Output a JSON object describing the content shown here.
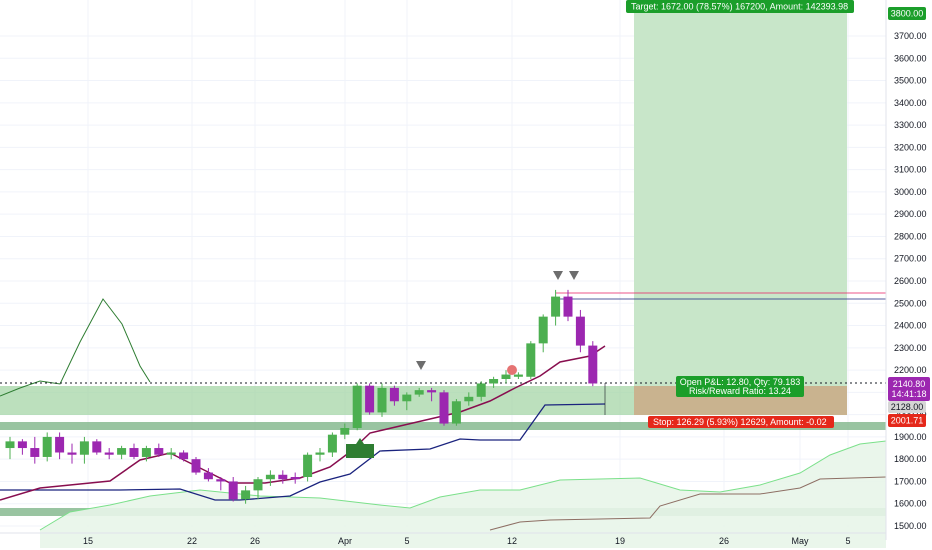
{
  "chart_data": {
    "type": "candlestick",
    "y_axis": {
      "ticks": [
        1500,
        1600,
        1700,
        1800,
        1900,
        2000,
        2100,
        2200,
        2300,
        2400,
        2500,
        2600,
        2700,
        2800,
        2900,
        3000,
        3100,
        3200,
        3300,
        3400,
        3500,
        3600,
        3700
      ],
      "tick_labels": [
        "1500.00",
        "1600.00",
        "1700.00",
        "1800.00",
        "1900.00",
        "2000.00",
        "2100.00",
        "2200.00",
        "2300.00",
        "2400.00",
        "2500.00",
        "2600.00",
        "2700.00",
        "2800.00",
        "2900.00",
        "3000.00",
        "3100.00",
        "3200.00",
        "3300.00",
        "3400.00",
        "3500.00",
        "3600.00",
        "3700.00"
      ],
      "range": [
        1490,
        3830
      ]
    },
    "x_axis": {
      "tick_labels": [
        "15",
        "22",
        "26",
        "Apr",
        "5",
        "12",
        "19",
        "26",
        "May",
        "5"
      ]
    },
    "candles": [
      {
        "o": 1850,
        "h": 1900,
        "l": 1800,
        "c": 1880,
        "color": "green"
      },
      {
        "o": 1880,
        "h": 1890,
        "l": 1820,
        "c": 1850,
        "color": "purple"
      },
      {
        "o": 1850,
        "h": 1900,
        "l": 1780,
        "c": 1810,
        "color": "purple"
      },
      {
        "o": 1810,
        "h": 1920,
        "l": 1790,
        "c": 1900,
        "color": "green"
      },
      {
        "o": 1900,
        "h": 1920,
        "l": 1800,
        "c": 1830,
        "color": "purple"
      },
      {
        "o": 1830,
        "h": 1870,
        "l": 1780,
        "c": 1820,
        "color": "purple"
      },
      {
        "o": 1820,
        "h": 1900,
        "l": 1780,
        "c": 1880,
        "color": "green"
      },
      {
        "o": 1880,
        "h": 1890,
        "l": 1820,
        "c": 1830,
        "color": "purple"
      },
      {
        "o": 1830,
        "h": 1850,
        "l": 1800,
        "c": 1820,
        "color": "purple"
      },
      {
        "o": 1820,
        "h": 1860,
        "l": 1800,
        "c": 1850,
        "color": "green"
      },
      {
        "o": 1850,
        "h": 1870,
        "l": 1800,
        "c": 1810,
        "color": "purple"
      },
      {
        "o": 1810,
        "h": 1860,
        "l": 1790,
        "c": 1850,
        "color": "green"
      },
      {
        "o": 1850,
        "h": 1870,
        "l": 1810,
        "c": 1820,
        "color": "purple"
      },
      {
        "o": 1820,
        "h": 1850,
        "l": 1800,
        "c": 1830,
        "color": "green"
      },
      {
        "o": 1830,
        "h": 1840,
        "l": 1790,
        "c": 1800,
        "color": "purple"
      },
      {
        "o": 1800,
        "h": 1810,
        "l": 1730,
        "c": 1740,
        "color": "purple"
      },
      {
        "o": 1740,
        "h": 1760,
        "l": 1700,
        "c": 1710,
        "color": "purple"
      },
      {
        "o": 1710,
        "h": 1720,
        "l": 1660,
        "c": 1700,
        "color": "purple"
      },
      {
        "o": 1700,
        "h": 1720,
        "l": 1610,
        "c": 1620,
        "color": "purple"
      },
      {
        "o": 1620,
        "h": 1680,
        "l": 1600,
        "c": 1660,
        "color": "green"
      },
      {
        "o": 1660,
        "h": 1720,
        "l": 1620,
        "c": 1710,
        "color": "green"
      },
      {
        "o": 1710,
        "h": 1750,
        "l": 1680,
        "c": 1730,
        "color": "green"
      },
      {
        "o": 1730,
        "h": 1750,
        "l": 1690,
        "c": 1710,
        "color": "purple"
      },
      {
        "o": 1710,
        "h": 1740,
        "l": 1690,
        "c": 1720,
        "color": "purple"
      },
      {
        "o": 1720,
        "h": 1830,
        "l": 1700,
        "c": 1820,
        "color": "green"
      },
      {
        "o": 1820,
        "h": 1850,
        "l": 1790,
        "c": 1830,
        "color": "green"
      },
      {
        "o": 1830,
        "h": 1920,
        "l": 1810,
        "c": 1910,
        "color": "green"
      },
      {
        "o": 1910,
        "h": 1960,
        "l": 1890,
        "c": 1940,
        "color": "green"
      },
      {
        "o": 1940,
        "h": 2140,
        "l": 1930,
        "c": 2130,
        "color": "green"
      },
      {
        "o": 2130,
        "h": 2140,
        "l": 2000,
        "c": 2010,
        "color": "purple"
      },
      {
        "o": 2010,
        "h": 2140,
        "l": 1990,
        "c": 2120,
        "color": "green"
      },
      {
        "o": 2120,
        "h": 2130,
        "l": 2040,
        "c": 2060,
        "color": "purple"
      },
      {
        "o": 2060,
        "h": 2100,
        "l": 2020,
        "c": 2090,
        "color": "green"
      },
      {
        "o": 2090,
        "h": 2120,
        "l": 2080,
        "c": 2110,
        "color": "green"
      },
      {
        "o": 2110,
        "h": 2120,
        "l": 2060,
        "c": 2100,
        "color": "purple"
      },
      {
        "o": 2100,
        "h": 2110,
        "l": 1950,
        "c": 1960,
        "color": "purple"
      },
      {
        "o": 1960,
        "h": 2070,
        "l": 1950,
        "c": 2060,
        "color": "green"
      },
      {
        "o": 2060,
        "h": 2100,
        "l": 2040,
        "c": 2080,
        "color": "green"
      },
      {
        "o": 2080,
        "h": 2150,
        "l": 2060,
        "c": 2140,
        "color": "green"
      },
      {
        "o": 2140,
        "h": 2170,
        "l": 2120,
        "c": 2160,
        "color": "green"
      },
      {
        "o": 2160,
        "h": 2200,
        "l": 2140,
        "c": 2180,
        "color": "green"
      },
      {
        "o": 2180,
        "h": 2190,
        "l": 2160,
        "c": 2170,
        "color": "green"
      },
      {
        "o": 2170,
        "h": 2330,
        "l": 2160,
        "c": 2320,
        "color": "green"
      },
      {
        "o": 2320,
        "h": 2450,
        "l": 2280,
        "c": 2440,
        "color": "green"
      },
      {
        "o": 2440,
        "h": 2560,
        "l": 2400,
        "c": 2530,
        "color": "green"
      },
      {
        "o": 2530,
        "h": 2560,
        "l": 2420,
        "c": 2440,
        "color": "purple"
      },
      {
        "o": 2440,
        "h": 2470,
        "l": 2280,
        "c": 2310,
        "color": "purple"
      },
      {
        "o": 2310,
        "h": 2330,
        "l": 2128,
        "c": 2140,
        "color": "purple"
      }
    ],
    "trade": {
      "target_label": "Target: 1672.00 (78.57%) 167200, Amount: 142393.98",
      "pnl_label": "Open P&L: 12.80, Qty: 79.183",
      "rr_label": "Risk/Reward Ratio: 13.24",
      "stop_label": "Stop: 126.29 (5.93%) 12629, Amount: -0.02",
      "target_price": 3800,
      "entry_price": 2128,
      "stop_price": 2001.71
    },
    "price_tags": {
      "target": "3800.00",
      "last": "2140.80",
      "countdown": "14:41:18",
      "entry": "2128.00",
      "stop": "2001.71"
    }
  },
  "colors": {
    "up": "#4caf50",
    "down": "#9c27b0",
    "target_zone": "#c8e6c9",
    "stop_zone": "#c9b38f",
    "green_tag": "#1b9e2a",
    "red_tag": "#e5281a",
    "purple_tag": "#9c27b0",
    "navy": "#1a237e",
    "maroon": "#880e4f"
  }
}
